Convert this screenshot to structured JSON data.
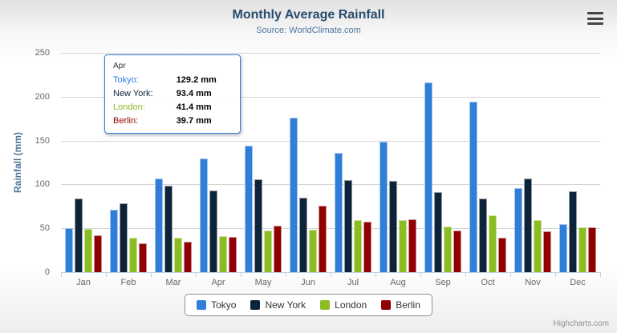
{
  "header": {
    "title": "Monthly Average Rainfall",
    "subtitle": "Source: WorldClimate.com"
  },
  "chart_data": {
    "type": "bar",
    "title": "Monthly Average Rainfall",
    "subtitle": "Source: WorldClimate.com",
    "xlabel": "",
    "ylabel": "Rainfall (mm)",
    "ylim": [
      0,
      250
    ],
    "y_ticks": [
      0,
      50,
      100,
      150,
      200,
      250
    ],
    "grid": true,
    "legend_position": "bottom",
    "categories": [
      "Jan",
      "Feb",
      "Mar",
      "Apr",
      "May",
      "Jun",
      "Jul",
      "Aug",
      "Sep",
      "Oct",
      "Nov",
      "Dec"
    ],
    "series": [
      {
        "name": "Tokyo",
        "color": "#2f7ed8",
        "values": [
          49.9,
          71.5,
          106.4,
          129.2,
          144.0,
          176.0,
          135.6,
          148.5,
          216.4,
          194.1,
          95.6,
          54.4
        ]
      },
      {
        "name": "New York",
        "color": "#0d233a",
        "values": [
          83.6,
          78.8,
          98.5,
          93.4,
          106.0,
          84.5,
          105.0,
          104.3,
          91.2,
          83.5,
          106.6,
          92.3
        ]
      },
      {
        "name": "London",
        "color": "#8bbc21",
        "values": [
          48.9,
          38.8,
          39.3,
          41.4,
          47.0,
          48.3,
          59.0,
          59.6,
          52.4,
          65.2,
          59.3,
          51.2
        ]
      },
      {
        "name": "Berlin",
        "color": "#910000",
        "values": [
          42.4,
          33.2,
          34.5,
          39.7,
          52.6,
          75.5,
          57.4,
          60.4,
          47.6,
          39.1,
          46.8,
          51.1
        ]
      }
    ]
  },
  "tooltip": {
    "category": "Apr",
    "rows": [
      {
        "name": "Tokyo:",
        "value": "129.2 mm",
        "color": "#2f7ed8"
      },
      {
        "name": "New York:",
        "value": "93.4 mm",
        "color": "#0d233a"
      },
      {
        "name": "London:",
        "value": "41.4 mm",
        "color": "#8bbc21"
      },
      {
        "name": "Berlin:",
        "value": "39.7 mm",
        "color": "#910000"
      }
    ]
  },
  "credits": {
    "label": "Highcharts.com"
  }
}
